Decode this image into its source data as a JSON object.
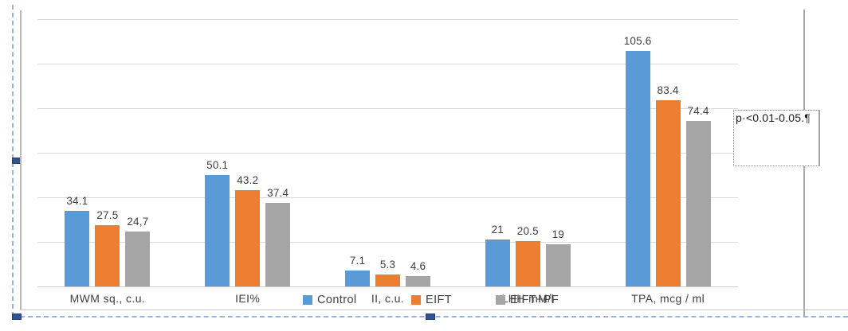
{
  "chart_data": {
    "type": "bar",
    "title": "",
    "categories": [
      "MWM sq., c.u.",
      "IEI%",
      "II, c.u.",
      "LHH mM/l",
      "TPA, mcg / ml"
    ],
    "series": [
      {
        "name": "Control",
        "color": "#5B9BD5",
        "values": [
          34.1,
          50.1,
          7.1,
          21,
          105.6
        ],
        "labels": [
          "34.1",
          "50.1",
          "7.1",
          "21",
          "105.6"
        ]
      },
      {
        "name": "EIFT",
        "color": "#ED7D31",
        "values": [
          27.5,
          43.2,
          5.3,
          20.5,
          83.4
        ],
        "labels": [
          "27.5",
          "43.2",
          "5.3",
          "20.5",
          "83.4"
        ]
      },
      {
        "name": "EIFT+PF",
        "color": "#A5A5A5",
        "values": [
          24.7,
          37.4,
          4.6,
          19,
          74.4
        ],
        "labels": [
          "24,7",
          "37.4",
          "4.6",
          "19",
          "74.4"
        ]
      }
    ],
    "xlabel": "",
    "ylabel": "",
    "ylim": [
      0,
      120
    ],
    "grid_step": 20,
    "grid": true,
    "y_axis_labels_visible": false,
    "legend_position": "bottom"
  },
  "annotation": {
    "text": "p·<0.01-0.05.¶"
  },
  "colors": {
    "gridline": "#d9d9d9",
    "frame": "#b8b8b8",
    "selection_dash": "#9ab3d5",
    "selection_handle": "#31538f",
    "label_text": "#404040"
  }
}
